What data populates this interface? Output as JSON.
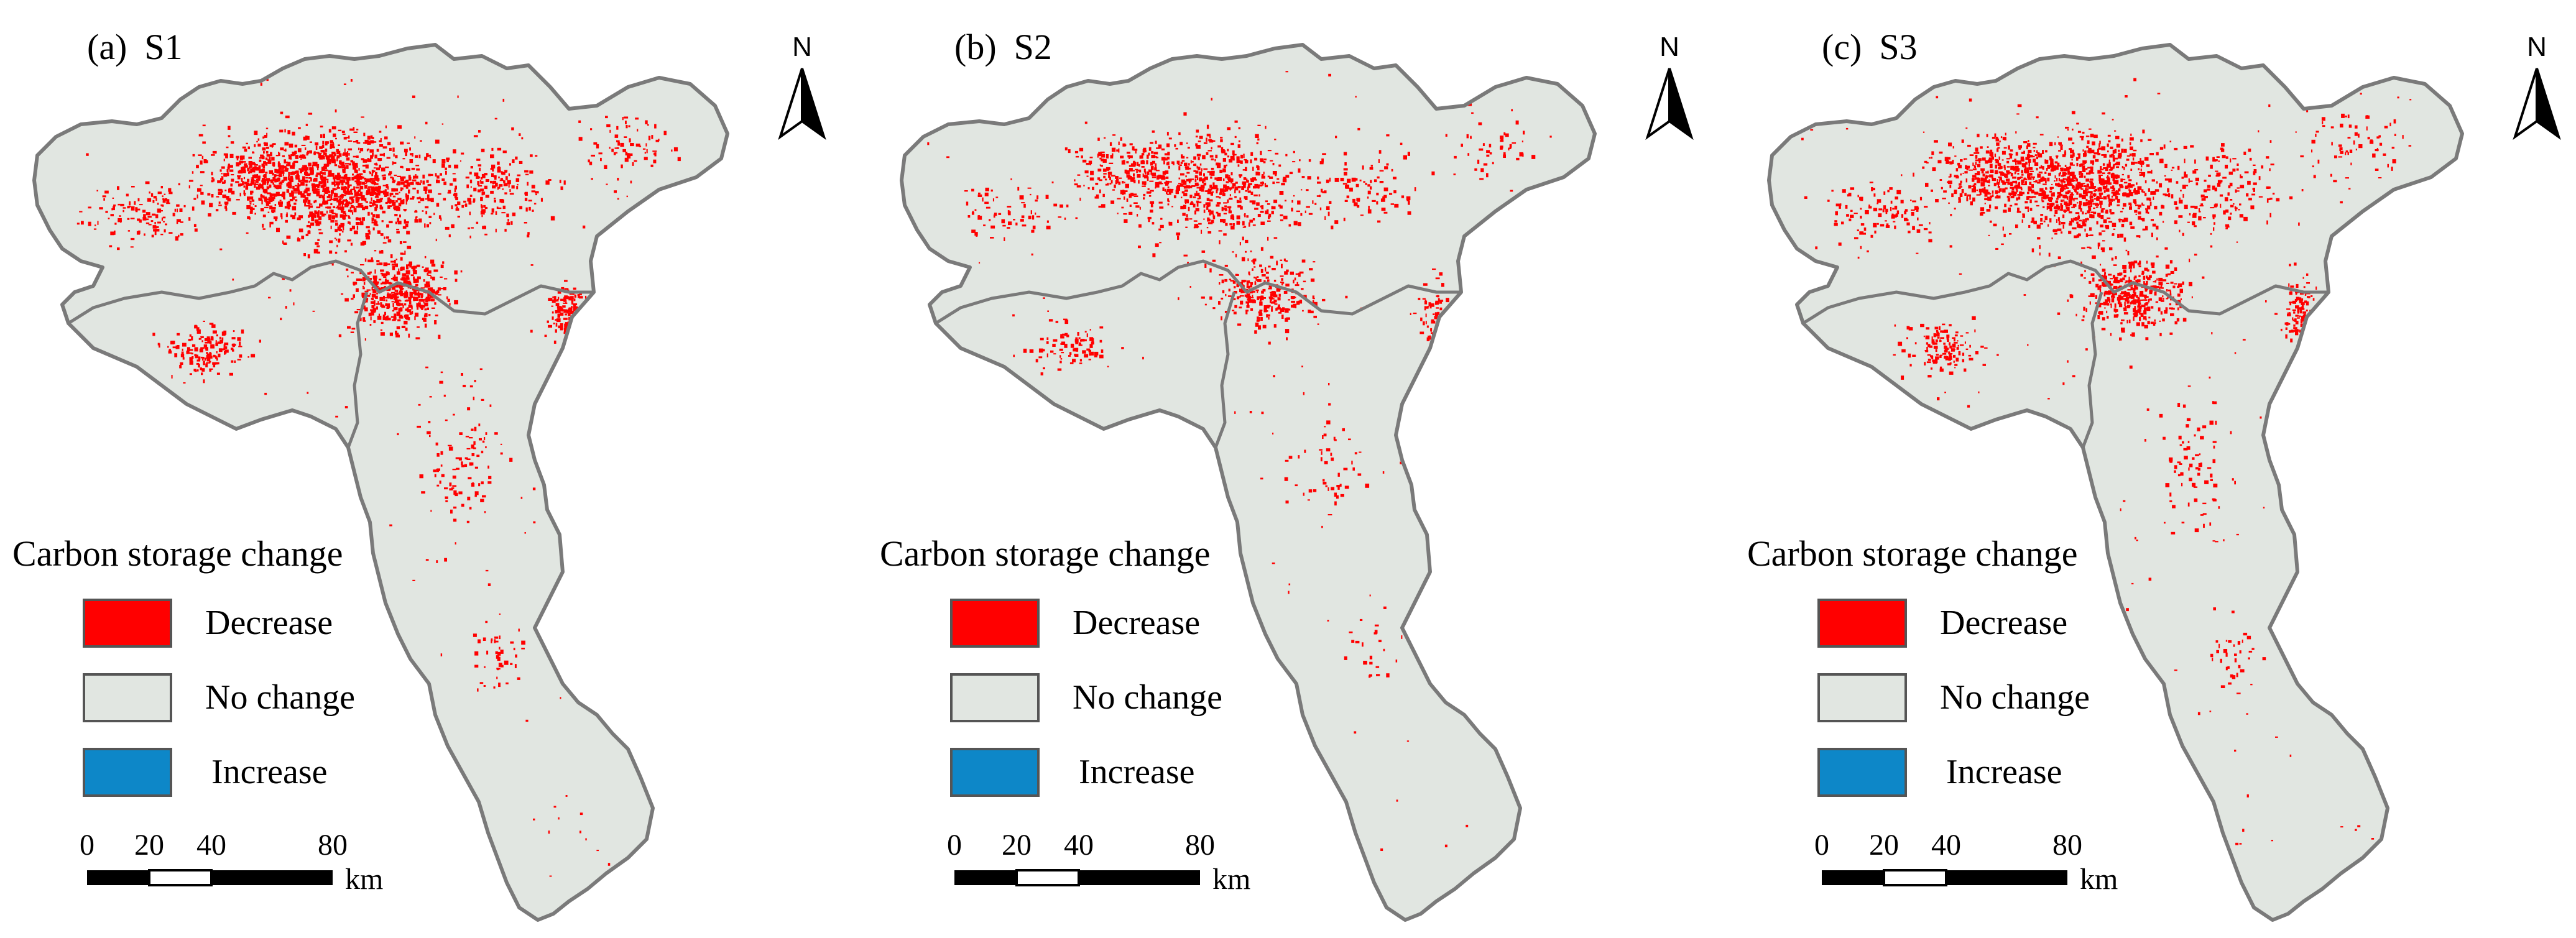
{
  "panels": [
    {
      "id": "S1",
      "letter": "(a)",
      "scenario": "S1",
      "decrease_density": 1.0,
      "seed": 11
    },
    {
      "id": "S2",
      "letter": "(b)",
      "scenario": "S2",
      "decrease_density": 0.55,
      "seed": 23
    },
    {
      "id": "S3",
      "letter": "(c)",
      "scenario": "S3",
      "decrease_density": 0.85,
      "seed": 37
    }
  ],
  "north_label": "N",
  "legend": {
    "title": "Carbon storage change",
    "items": [
      {
        "label": "Decrease",
        "color": "#ff0000"
      },
      {
        "label": "No change",
        "color": "#e1e6e1"
      },
      {
        "label": "Increase",
        "color": "#0d87c8"
      }
    ]
  },
  "scalebar": {
    "ticks": [
      "0",
      "20",
      "40",
      "80"
    ],
    "unit": "km"
  },
  "colors": {
    "land": "#e1e6e1",
    "boundary": "#7a7a7a",
    "decrease": "#ff0000",
    "increase": "#0d87c8"
  }
}
